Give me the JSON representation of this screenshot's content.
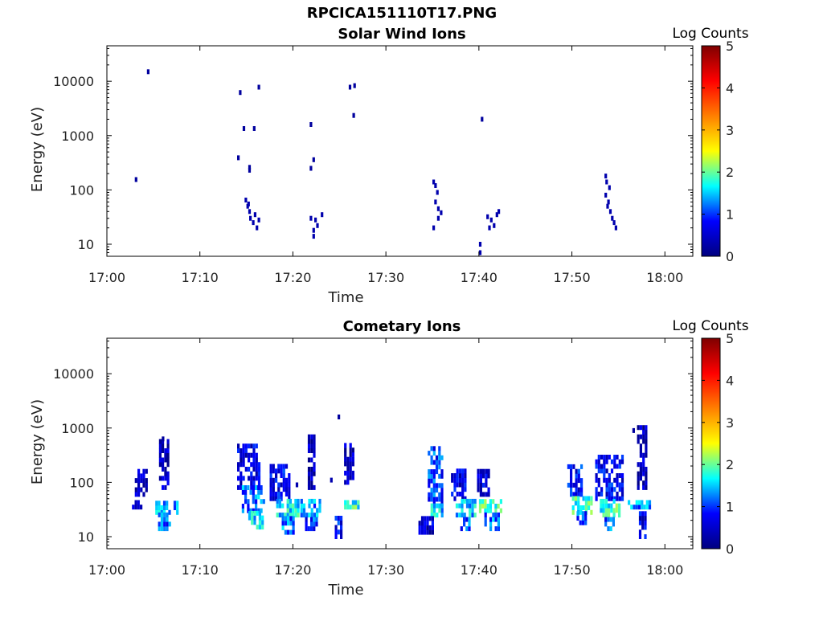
{
  "figure_title": "RPCICA151110T17.PNG",
  "colors": {
    "data_blue": "#00008f",
    "colormap": [
      "#00007f",
      "#0000ff",
      "#00ffff",
      "#ffff00",
      "#ff7f00",
      "#ff0000",
      "#7f0000"
    ]
  },
  "chart_data": [
    {
      "type": "heatmap",
      "title": "Solar Wind Ions",
      "xlabel": "Time",
      "ylabel": "Energy (eV)",
      "x_unit": "minutes after 17:00",
      "xlim": [
        0,
        63
      ],
      "x_ticks": [
        0,
        10,
        20,
        30,
        40,
        50,
        60
      ],
      "x_tick_labels": [
        "17:00",
        "17:10",
        "17:20",
        "17:30",
        "17:40",
        "17:50",
        "18:00"
      ],
      "y_scale": "log",
      "ylim": [
        6,
        45000
      ],
      "y_ticks": [
        10,
        100,
        1000,
        10000
      ],
      "y_tick_labels": [
        "10",
        "100",
        "1000",
        "10000"
      ],
      "colorbar": {
        "label": "Log Counts",
        "range": [
          0,
          5
        ],
        "ticks": [
          "0",
          "1",
          "2",
          "3",
          "4",
          "5"
        ]
      },
      "points": [
        [
          3,
          155,
          0.2
        ],
        [
          4.3,
          15000,
          0.2
        ],
        [
          14.2,
          6200,
          0.2
        ],
        [
          14.6,
          1350,
          0.2
        ],
        [
          14,
          390,
          0.2
        ],
        [
          15.2,
          260,
          0.2
        ],
        [
          15.2,
          230,
          0.2
        ],
        [
          15.7,
          1350,
          0.2
        ],
        [
          16.2,
          7800,
          0.2
        ],
        [
          14.8,
          65,
          0.3
        ],
        [
          15,
          50,
          0.3
        ],
        [
          15.2,
          40,
          0.3
        ],
        [
          15.3,
          30,
          0.3
        ],
        [
          15.6,
          25,
          0.3
        ],
        [
          15.8,
          35,
          0.3
        ],
        [
          16,
          20,
          0.3
        ],
        [
          16.2,
          28,
          0.3
        ],
        [
          15.1,
          55,
          0.3
        ],
        [
          21.8,
          1600,
          0.2
        ],
        [
          22.1,
          360,
          0.2
        ],
        [
          21.8,
          250,
          0.2
        ],
        [
          21.8,
          30,
          0.3
        ],
        [
          22.1,
          18,
          0.3
        ],
        [
          22.1,
          14,
          0.3
        ],
        [
          22.5,
          22,
          0.3
        ],
        [
          22.3,
          28,
          0.3
        ],
        [
          23,
          35,
          0.3
        ],
        [
          26,
          7800,
          0.2
        ],
        [
          26.5,
          8300,
          0.2
        ],
        [
          26.4,
          2350,
          0.2
        ],
        [
          35,
          140,
          0.3
        ],
        [
          35.2,
          120,
          0.3
        ],
        [
          35.4,
          90,
          0.3
        ],
        [
          35.2,
          60,
          0.3
        ],
        [
          35.5,
          45,
          0.3
        ],
        [
          35.8,
          38,
          0.3
        ],
        [
          35.5,
          30,
          0.3
        ],
        [
          35,
          20,
          0.3
        ],
        [
          40,
          10,
          0.3
        ],
        [
          40,
          7,
          0.3
        ],
        [
          40.2,
          2000,
          0.2
        ],
        [
          40.8,
          32,
          0.3
        ],
        [
          41.2,
          28,
          0.3
        ],
        [
          41.5,
          22,
          0.3
        ],
        [
          41.8,
          35,
          0.3
        ],
        [
          42,
          40,
          0.3
        ],
        [
          41,
          20,
          0.3
        ],
        [
          53.5,
          180,
          0.3
        ],
        [
          53.6,
          140,
          0.3
        ],
        [
          53.9,
          110,
          0.3
        ],
        [
          53.5,
          80,
          0.3
        ],
        [
          53.8,
          60,
          0.3
        ],
        [
          54,
          40,
          0.3
        ],
        [
          54.2,
          30,
          0.3
        ],
        [
          54.4,
          25,
          0.3
        ],
        [
          54.6,
          20,
          0.3
        ],
        [
          53.7,
          50,
          0.3
        ]
      ]
    },
    {
      "type": "heatmap",
      "title": "Cometary Ions",
      "xlabel": "Time",
      "ylabel": "Energy (eV)",
      "x_unit": "minutes after 17:00",
      "xlim": [
        0,
        63
      ],
      "x_ticks": [
        0,
        10,
        20,
        30,
        40,
        50,
        60
      ],
      "x_tick_labels": [
        "17:00",
        "17:10",
        "17:20",
        "17:30",
        "17:40",
        "17:50",
        "18:00"
      ],
      "y_scale": "log",
      "ylim": [
        6,
        45000
      ],
      "y_ticks": [
        10,
        100,
        1000,
        10000
      ],
      "y_tick_labels": [
        "10",
        "100",
        "1000",
        "10000"
      ],
      "colorbar": {
        "label": "Log Counts",
        "range": [
          0,
          5
        ],
        "ticks": [
          "0",
          "1",
          "2",
          "3",
          "4",
          "5"
        ]
      },
      "bursts": [
        {
          "t": [
            3,
            4.2
          ],
          "e": [
            60,
            180
          ],
          "c": 0.4
        },
        {
          "t": [
            2.7,
            3.8
          ],
          "e": [
            35,
            45
          ],
          "c": 0.6
        },
        {
          "t": [
            5.2,
            7.5
          ],
          "e": [
            28,
            45
          ],
          "c": 1.4
        },
        {
          "t": [
            5.5,
            6.8
          ],
          "e": [
            14,
            30
          ],
          "c": 1.1
        },
        {
          "t": [
            5.6,
            6.6
          ],
          "e": [
            80,
            650
          ],
          "c": 0.4
        },
        {
          "t": [
            14,
            16.5
          ],
          "e": [
            80,
            500
          ],
          "c": 0.6
        },
        {
          "t": [
            14.5,
            17
          ],
          "e": [
            30,
            80
          ],
          "c": 1.2
        },
        {
          "t": [
            15.2,
            16.8
          ],
          "e": [
            15,
            30
          ],
          "c": 1.6
        },
        {
          "t": [
            17.5,
            19.5
          ],
          "e": [
            50,
            200
          ],
          "c": 0.7
        },
        {
          "t": [
            18.2,
            20.5
          ],
          "e": [
            25,
            50
          ],
          "c": 1.6
        },
        {
          "t": [
            18.8,
            20.2
          ],
          "e": [
            12,
            25
          ],
          "c": 1.2
        },
        {
          "t": [
            20.8,
            23
          ],
          "e": [
            25,
            45
          ],
          "c": 1.3
        },
        {
          "t": [
            21.3,
            22.5
          ],
          "e": [
            14,
            25
          ],
          "c": 1.0
        },
        {
          "t": [
            21.6,
            22.3
          ],
          "e": [
            80,
            700
          ],
          "c": 0.4
        },
        {
          "t": [
            24.5,
            25.5
          ],
          "e": [
            10,
            25
          ],
          "c": 0.8
        },
        {
          "t": [
            25.5,
            27
          ],
          "e": [
            35,
            45
          ],
          "c": 1.8
        },
        {
          "t": [
            25.5,
            26.5
          ],
          "e": [
            100,
            500
          ],
          "c": 0.4
        },
        {
          "t": [
            34.5,
            36
          ],
          "e": [
            40,
            450
          ],
          "c": 1.0
        },
        {
          "t": [
            34.8,
            36
          ],
          "e": [
            25,
            40
          ],
          "c": 1.5
        },
        {
          "t": [
            33.5,
            35
          ],
          "e": [
            12,
            22
          ],
          "c": 0.5
        },
        {
          "t": [
            37,
            38.5
          ],
          "e": [
            50,
            180
          ],
          "c": 0.6
        },
        {
          "t": [
            37.5,
            39.5
          ],
          "e": [
            25,
            45
          ],
          "c": 1.5
        },
        {
          "t": [
            38,
            39
          ],
          "e": [
            14,
            25
          ],
          "c": 1.1
        },
        {
          "t": [
            40,
            42.5
          ],
          "e": [
            30,
            45
          ],
          "c": 1.9
        },
        {
          "t": [
            40.3,
            42
          ],
          "e": [
            14,
            30
          ],
          "c": 1.2
        },
        {
          "t": [
            39.8,
            41
          ],
          "e": [
            60,
            180
          ],
          "c": 0.6
        },
        {
          "t": [
            49.5,
            51
          ],
          "e": [
            60,
            220
          ],
          "c": 0.8
        },
        {
          "t": [
            50,
            52
          ],
          "e": [
            28,
            60
          ],
          "c": 1.8
        },
        {
          "t": [
            50.5,
            51.5
          ],
          "e": [
            18,
            28
          ],
          "c": 1.0
        },
        {
          "t": [
            52.5,
            55.5
          ],
          "e": [
            50,
            300
          ],
          "c": 0.7
        },
        {
          "t": [
            53,
            55
          ],
          "e": [
            25,
            50
          ],
          "c": 1.8
        },
        {
          "t": [
            53.5,
            54.5
          ],
          "e": [
            14,
            25
          ],
          "c": 1.1
        },
        {
          "t": [
            56,
            58.5
          ],
          "e": [
            35,
            45
          ],
          "c": 1.3
        },
        {
          "t": [
            57,
            58
          ],
          "e": [
            80,
            1100
          ],
          "c": 0.4
        },
        {
          "t": [
            57.2,
            57.8
          ],
          "e": [
            10,
            30
          ],
          "c": 0.6
        }
      ],
      "points": [
        [
          24.8,
          1600,
          0.2
        ],
        [
          5.9,
          630,
          0.2
        ],
        [
          56.5,
          900,
          0.2
        ],
        [
          24,
          110,
          0.3
        ],
        [
          20.3,
          90,
          0.3
        ]
      ]
    }
  ]
}
